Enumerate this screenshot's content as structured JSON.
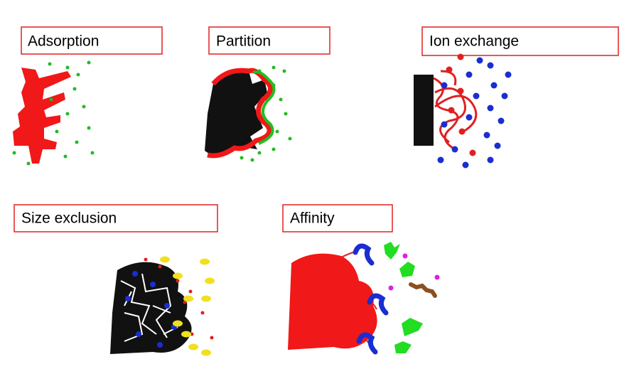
{
  "panels": [
    {
      "label": "Adsorption"
    },
    {
      "label": "Partition"
    },
    {
      "label": "Ion exchange"
    },
    {
      "label": "Size exclusion"
    },
    {
      "label": "Affinity"
    }
  ]
}
